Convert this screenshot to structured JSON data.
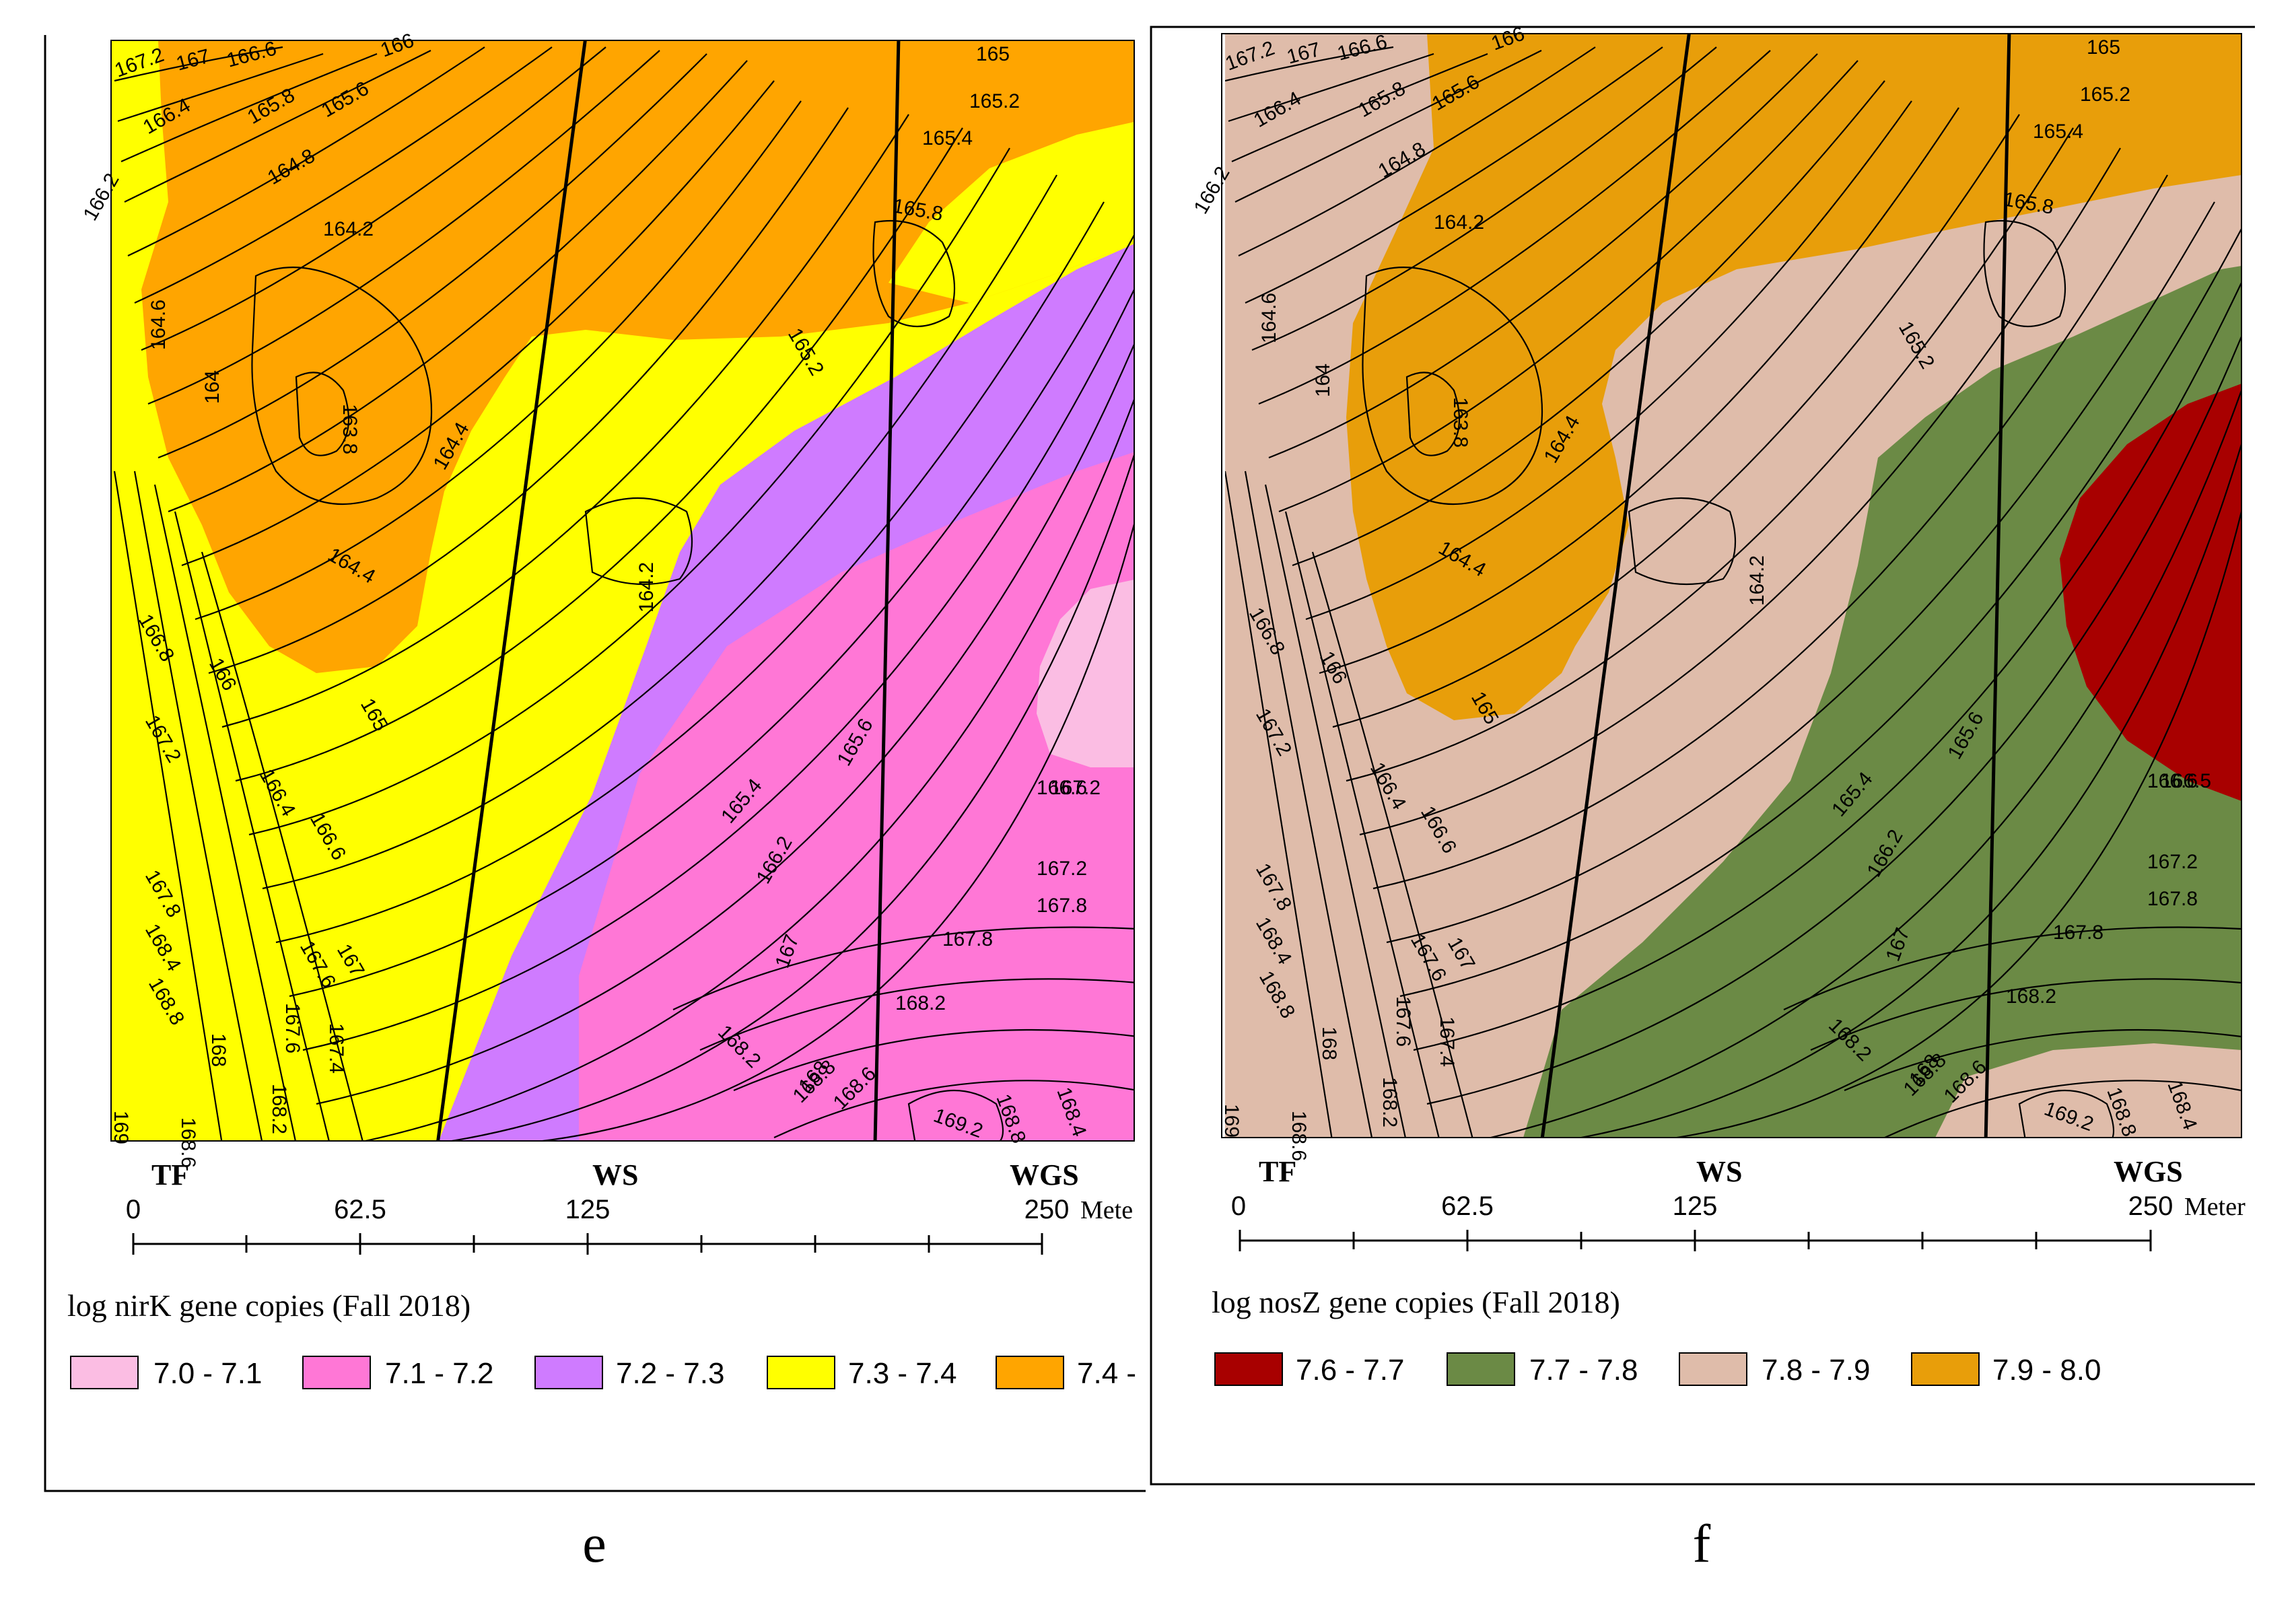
{
  "panels": [
    {
      "id": "e",
      "caption": "e",
      "site_labels": [
        "TF",
        "WS",
        "WGS"
      ],
      "scale": {
        "ticks": [
          "0",
          "62.5",
          "125",
          "250"
        ],
        "unit": "Mete"
      },
      "legend": {
        "title": "log nirK gene copies (Fall 2018)",
        "classes": [
          {
            "label": "7.0 - 7.1",
            "color": "#fbbde3"
          },
          {
            "label": "7.1 - 7.2",
            "color": "#ff77d6"
          },
          {
            "label": "7.2 - 7.3",
            "color": "#cf7bff"
          },
          {
            "label": "7.3 - 7.4",
            "color": "#ffff00"
          },
          {
            "label": "7.4 -",
            "color": "#ffa500"
          }
        ]
      },
      "contour_labels": [
        "167.2",
        "167",
        "166.6",
        "166",
        "165",
        "165.2",
        "165.4",
        "166.4",
        "165.8",
        "165.6",
        "164.8",
        "164.2",
        "165.8",
        "166.2",
        "164.6",
        "164",
        "163.8",
        "164.4",
        "165.2",
        "164.4",
        "164.2",
        "166.8",
        "166",
        "165",
        "167.2",
        "166.4",
        "166.6",
        "167.8",
        "167.6",
        "167",
        "168.4",
        "167.6",
        "167.4",
        "168.8",
        "168",
        "168.2",
        "168.6",
        "169",
        "168.2",
        "165.4",
        "165.6",
        "166.2",
        "166.6",
        "167",
        "167.2",
        "167.8",
        "167.8",
        "168.2",
        "168.8",
        "168",
        "168.6",
        "169.2",
        "168.8",
        "168.4",
        "167.2"
      ]
    },
    {
      "id": "f",
      "caption": "f",
      "site_labels": [
        "TF",
        "WS",
        "WGS"
      ],
      "scale": {
        "ticks": [
          "0",
          "62.5",
          "125",
          "250"
        ],
        "unit": "Meter"
      },
      "legend": {
        "title": "log nosZ  gene copies (Fall 2018)",
        "classes": [
          {
            "label": "7.6 - 7.7",
            "color": "#a80000"
          },
          {
            "label": "7.7 - 7.8",
            "color": "#6b8a45"
          },
          {
            "label": "7.8 - 7.9",
            "color": "#dfbcaa"
          },
          {
            "label": "7.9 - 8.0",
            "color": "#e89e0a"
          }
        ]
      },
      "contour_labels": [
        "167.2",
        "167",
        "166.6",
        "166",
        "165",
        "165.2",
        "165.4",
        "166.4",
        "165.8",
        "165.6",
        "164.8",
        "164.2",
        "165.8",
        "166.2",
        "164.6",
        "164",
        "163.8",
        "164.4",
        "165.2",
        "164.4",
        "164.2",
        "166.8",
        "166",
        "165",
        "167.2",
        "166.4",
        "166.6",
        "167.8",
        "167.6",
        "167",
        "168.4",
        "167.6",
        "167.4",
        "168.8",
        "168",
        "168.2",
        "168.6",
        "169",
        "168.2",
        "165.4",
        "165.6",
        "166.2",
        "166.6",
        "167",
        "167.2",
        "167.8",
        "167.8",
        "168.2",
        "168.8",
        "168",
        "168.6",
        "169.2",
        "168.8",
        "168.4",
        "166.5"
      ]
    }
  ]
}
